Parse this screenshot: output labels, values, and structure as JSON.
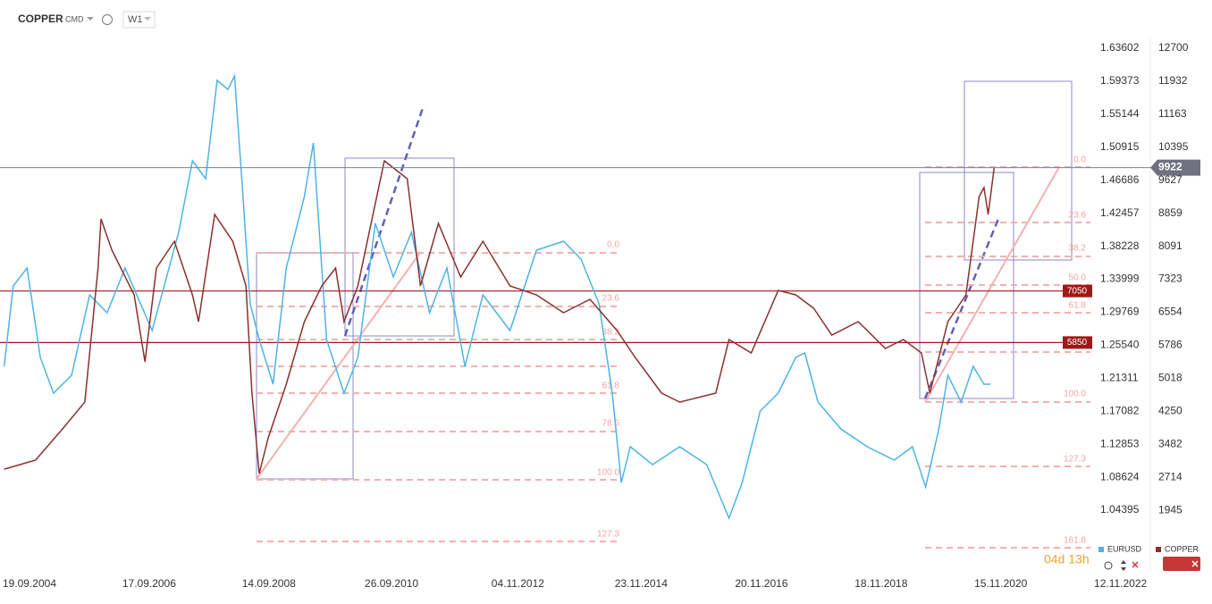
{
  "header": {
    "symbol": "COPPER",
    "market": "CMD",
    "interval": "W1"
  },
  "countdown": "04d 13h",
  "chart_data": {
    "type": "line",
    "xlim": [
      2004.23,
      2022.39
    ],
    "xticks": [
      {
        "value": 2004.72,
        "label": "19.09.2004"
      },
      {
        "value": 2006.71,
        "label": "17.09.2006"
      },
      {
        "value": 2008.7,
        "label": "14.09.2008"
      },
      {
        "value": 2010.74,
        "label": "26.09.2010"
      },
      {
        "value": 2012.84,
        "label": "04.11.2012"
      },
      {
        "value": 2014.89,
        "label": "23.11.2014"
      },
      {
        "value": 2016.89,
        "label": "20.11.2016"
      },
      {
        "value": 2018.88,
        "label": "18.11.2018"
      },
      {
        "value": 2020.87,
        "label": "15.11.2020"
      },
      {
        "value": 2022.86,
        "label": "12.11.2022"
      }
    ],
    "ylim": [
      513,
      12991
    ],
    "yticks": [
      12700,
      11932,
      11163,
      10395,
      9627,
      8859,
      8091,
      7323,
      6554,
      5786,
      5018,
      4250,
      3482,
      2714,
      1945
    ],
    "y2lim": [
      0.96497,
      1.65205
    ],
    "y2ticks": [
      1.63602,
      1.59373,
      1.55144,
      1.50915,
      1.46686,
      1.42457,
      1.38228,
      1.33999,
      1.29769,
      {
        "value": 1.2554,
        "label": "1.25540"
      },
      1.21311,
      1.17082,
      1.12853,
      1.08624,
      1.04395
    ],
    "levels": [
      7050,
      5850
    ],
    "last_price": 9922,
    "fib_labels": [
      "0.0",
      "23.6",
      "38.2",
      "50.0",
      "61.8",
      "78.6",
      "100.0",
      "127.3",
      "161.8"
    ],
    "series": [
      {
        "name": "EURUSD",
        "color": "#4db3e6",
        "axis": "y2",
        "x": [
          2004.3,
          2004.45,
          2004.68,
          2004.9,
          2005.12,
          2005.42,
          2005.72,
          2006.01,
          2006.31,
          2006.76,
          2007.2,
          2007.43,
          2007.65,
          2007.84,
          2008.02,
          2008.13,
          2008.25,
          2008.39,
          2008.54,
          2008.77,
          2008.99,
          2009.29,
          2009.44,
          2009.66,
          2009.95,
          2010.18,
          2010.47,
          2010.77,
          2011.07,
          2011.37,
          2011.66,
          2011.96,
          2012.26,
          2012.71,
          2013.15,
          2013.6,
          2013.89,
          2014.19,
          2014.41,
          2014.56,
          2014.71,
          2015.08,
          2015.53,
          2015.98,
          2016.35,
          2016.57,
          2016.87,
          2017.17,
          2017.46,
          2017.61,
          2017.83,
          2018.21,
          2018.65,
          2019.1,
          2019.4,
          2019.62,
          2019.84,
          2019.99,
          2020.21,
          2020.41,
          2020.59,
          2020.7
        ],
        "values": [
          1.2283,
          1.3314,
          1.3543,
          1.2398,
          1.194,
          1.2169,
          1.32,
          1.2971,
          1.3543,
          1.2741,
          1.4001,
          1.4917,
          1.4688,
          1.5948,
          1.5833,
          1.6005,
          1.4688,
          1.3085,
          1.2627,
          1.2054,
          1.3543,
          1.4459,
          1.5146,
          1.2627,
          1.194,
          1.2398,
          1.4116,
          1.3429,
          1.4001,
          1.2971,
          1.3543,
          1.2283,
          1.32,
          1.2741,
          1.3772,
          1.3887,
          1.3658,
          1.3085,
          1.194,
          1.0795,
          1.1253,
          1.1024,
          1.1253,
          1.1024,
          1.0337,
          1.0795,
          1.1711,
          1.194,
          1.2398,
          1.2455,
          1.1825,
          1.1482,
          1.1253,
          1.1081,
          1.1253,
          1.0738,
          1.1482,
          1.2169,
          1.1825,
          1.2283,
          1.2054,
          1.2054
        ]
      },
      {
        "name": "COPPER",
        "color": "#8a2f2f",
        "x": [
          2004.3,
          2004.82,
          2005.27,
          2005.64,
          2005.86,
          2005.91,
          2006.09,
          2006.46,
          2006.64,
          2006.83,
          2007.13,
          2007.43,
          2007.53,
          2007.8,
          2008.1,
          2008.32,
          2008.42,
          2008.54,
          2008.69,
          2008.99,
          2009.29,
          2009.58,
          2009.81,
          2009.95,
          2010.18,
          2010.62,
          2011.0,
          2011.22,
          2011.52,
          2011.89,
          2012.26,
          2012.71,
          2013.15,
          2013.6,
          2014.04,
          2014.49,
          2014.79,
          2015.23,
          2015.53,
          2016.13,
          2016.35,
          2016.72,
          2017.17,
          2017.46,
          2017.76,
          2018.06,
          2018.5,
          2018.95,
          2019.25,
          2019.55,
          2019.69,
          2019.99,
          2020.29,
          2020.51,
          2020.59,
          2020.66,
          2020.76
        ],
        "values": [
          2903,
          3112,
          3841,
          4465,
          7584,
          8728,
          8000,
          6960,
          5401,
          7584,
          8208,
          6960,
          6336,
          8832,
          8208,
          7168,
          4673,
          2801,
          3633,
          4881,
          6336,
          7168,
          7584,
          6336,
          7168,
          10080,
          9664,
          7168,
          8624,
          7376,
          8208,
          7168,
          6960,
          6544,
          6856,
          6128,
          5505,
          4673,
          4465,
          4673,
          5920,
          5609,
          7064,
          6960,
          6648,
          6024,
          6336,
          5713,
          5920,
          5609,
          4673,
          6336,
          6960,
          9248,
          9456,
          8832,
          9922
        ]
      }
    ]
  }
}
